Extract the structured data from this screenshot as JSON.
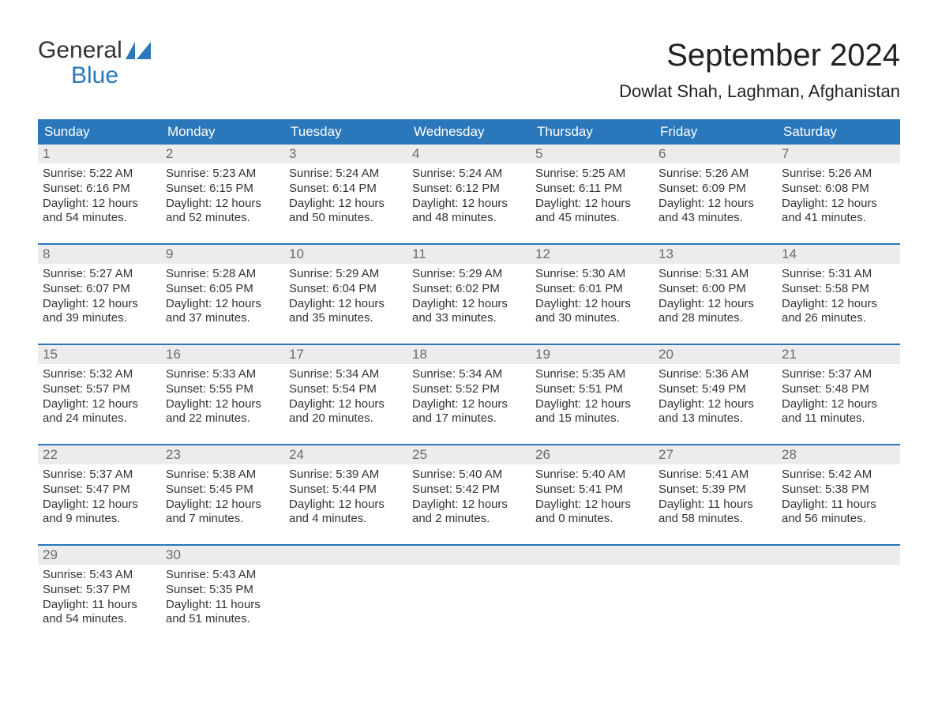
{
  "brand": {
    "line1": "General",
    "line2": "Blue",
    "flag_color": "#2a77bb",
    "text_gray": "#333333"
  },
  "title": "September 2024",
  "location": "Dowlat Shah, Laghman, Afghanistan",
  "colors": {
    "header_bg": "#2a77bb",
    "header_text": "#ffffff",
    "week_border": "#2a77bb",
    "daynum_bg": "#ececec",
    "daynum_text": "#6b6b6b",
    "body_text": "#333333",
    "background": "#ffffff"
  },
  "typography": {
    "month_title_pt": 40,
    "location_pt": 22,
    "dow_pt": 17,
    "daynum_pt": 17,
    "body_pt": 15
  },
  "days_of_week": [
    "Sunday",
    "Monday",
    "Tuesday",
    "Wednesday",
    "Thursday",
    "Friday",
    "Saturday"
  ],
  "weeks": [
    [
      {
        "n": "1",
        "sunrise": "Sunrise: 5:22 AM",
        "sunset": "Sunset: 6:16 PM",
        "day1": "Daylight: 12 hours",
        "day2": "and 54 minutes."
      },
      {
        "n": "2",
        "sunrise": "Sunrise: 5:23 AM",
        "sunset": "Sunset: 6:15 PM",
        "day1": "Daylight: 12 hours",
        "day2": "and 52 minutes."
      },
      {
        "n": "3",
        "sunrise": "Sunrise: 5:24 AM",
        "sunset": "Sunset: 6:14 PM",
        "day1": "Daylight: 12 hours",
        "day2": "and 50 minutes."
      },
      {
        "n": "4",
        "sunrise": "Sunrise: 5:24 AM",
        "sunset": "Sunset: 6:12 PM",
        "day1": "Daylight: 12 hours",
        "day2": "and 48 minutes."
      },
      {
        "n": "5",
        "sunrise": "Sunrise: 5:25 AM",
        "sunset": "Sunset: 6:11 PM",
        "day1": "Daylight: 12 hours",
        "day2": "and 45 minutes."
      },
      {
        "n": "6",
        "sunrise": "Sunrise: 5:26 AM",
        "sunset": "Sunset: 6:09 PM",
        "day1": "Daylight: 12 hours",
        "day2": "and 43 minutes."
      },
      {
        "n": "7",
        "sunrise": "Sunrise: 5:26 AM",
        "sunset": "Sunset: 6:08 PM",
        "day1": "Daylight: 12 hours",
        "day2": "and 41 minutes."
      }
    ],
    [
      {
        "n": "8",
        "sunrise": "Sunrise: 5:27 AM",
        "sunset": "Sunset: 6:07 PM",
        "day1": "Daylight: 12 hours",
        "day2": "and 39 minutes."
      },
      {
        "n": "9",
        "sunrise": "Sunrise: 5:28 AM",
        "sunset": "Sunset: 6:05 PM",
        "day1": "Daylight: 12 hours",
        "day2": "and 37 minutes."
      },
      {
        "n": "10",
        "sunrise": "Sunrise: 5:29 AM",
        "sunset": "Sunset: 6:04 PM",
        "day1": "Daylight: 12 hours",
        "day2": "and 35 minutes."
      },
      {
        "n": "11",
        "sunrise": "Sunrise: 5:29 AM",
        "sunset": "Sunset: 6:02 PM",
        "day1": "Daylight: 12 hours",
        "day2": "and 33 minutes."
      },
      {
        "n": "12",
        "sunrise": "Sunrise: 5:30 AM",
        "sunset": "Sunset: 6:01 PM",
        "day1": "Daylight: 12 hours",
        "day2": "and 30 minutes."
      },
      {
        "n": "13",
        "sunrise": "Sunrise: 5:31 AM",
        "sunset": "Sunset: 6:00 PM",
        "day1": "Daylight: 12 hours",
        "day2": "and 28 minutes."
      },
      {
        "n": "14",
        "sunrise": "Sunrise: 5:31 AM",
        "sunset": "Sunset: 5:58 PM",
        "day1": "Daylight: 12 hours",
        "day2": "and 26 minutes."
      }
    ],
    [
      {
        "n": "15",
        "sunrise": "Sunrise: 5:32 AM",
        "sunset": "Sunset: 5:57 PM",
        "day1": "Daylight: 12 hours",
        "day2": "and 24 minutes."
      },
      {
        "n": "16",
        "sunrise": "Sunrise: 5:33 AM",
        "sunset": "Sunset: 5:55 PM",
        "day1": "Daylight: 12 hours",
        "day2": "and 22 minutes."
      },
      {
        "n": "17",
        "sunrise": "Sunrise: 5:34 AM",
        "sunset": "Sunset: 5:54 PM",
        "day1": "Daylight: 12 hours",
        "day2": "and 20 minutes."
      },
      {
        "n": "18",
        "sunrise": "Sunrise: 5:34 AM",
        "sunset": "Sunset: 5:52 PM",
        "day1": "Daylight: 12 hours",
        "day2": "and 17 minutes."
      },
      {
        "n": "19",
        "sunrise": "Sunrise: 5:35 AM",
        "sunset": "Sunset: 5:51 PM",
        "day1": "Daylight: 12 hours",
        "day2": "and 15 minutes."
      },
      {
        "n": "20",
        "sunrise": "Sunrise: 5:36 AM",
        "sunset": "Sunset: 5:49 PM",
        "day1": "Daylight: 12 hours",
        "day2": "and 13 minutes."
      },
      {
        "n": "21",
        "sunrise": "Sunrise: 5:37 AM",
        "sunset": "Sunset: 5:48 PM",
        "day1": "Daylight: 12 hours",
        "day2": "and 11 minutes."
      }
    ],
    [
      {
        "n": "22",
        "sunrise": "Sunrise: 5:37 AM",
        "sunset": "Sunset: 5:47 PM",
        "day1": "Daylight: 12 hours",
        "day2": "and 9 minutes."
      },
      {
        "n": "23",
        "sunrise": "Sunrise: 5:38 AM",
        "sunset": "Sunset: 5:45 PM",
        "day1": "Daylight: 12 hours",
        "day2": "and 7 minutes."
      },
      {
        "n": "24",
        "sunrise": "Sunrise: 5:39 AM",
        "sunset": "Sunset: 5:44 PM",
        "day1": "Daylight: 12 hours",
        "day2": "and 4 minutes."
      },
      {
        "n": "25",
        "sunrise": "Sunrise: 5:40 AM",
        "sunset": "Sunset: 5:42 PM",
        "day1": "Daylight: 12 hours",
        "day2": "and 2 minutes."
      },
      {
        "n": "26",
        "sunrise": "Sunrise: 5:40 AM",
        "sunset": "Sunset: 5:41 PM",
        "day1": "Daylight: 12 hours",
        "day2": "and 0 minutes."
      },
      {
        "n": "27",
        "sunrise": "Sunrise: 5:41 AM",
        "sunset": "Sunset: 5:39 PM",
        "day1": "Daylight: 11 hours",
        "day2": "and 58 minutes."
      },
      {
        "n": "28",
        "sunrise": "Sunrise: 5:42 AM",
        "sunset": "Sunset: 5:38 PM",
        "day1": "Daylight: 11 hours",
        "day2": "and 56 minutes."
      }
    ],
    [
      {
        "n": "29",
        "sunrise": "Sunrise: 5:43 AM",
        "sunset": "Sunset: 5:37 PM",
        "day1": "Daylight: 11 hours",
        "day2": "and 54 minutes."
      },
      {
        "n": "30",
        "sunrise": "Sunrise: 5:43 AM",
        "sunset": "Sunset: 5:35 PM",
        "day1": "Daylight: 11 hours",
        "day2": "and 51 minutes."
      },
      {
        "empty": true
      },
      {
        "empty": true
      },
      {
        "empty": true
      },
      {
        "empty": true
      },
      {
        "empty": true
      }
    ]
  ]
}
